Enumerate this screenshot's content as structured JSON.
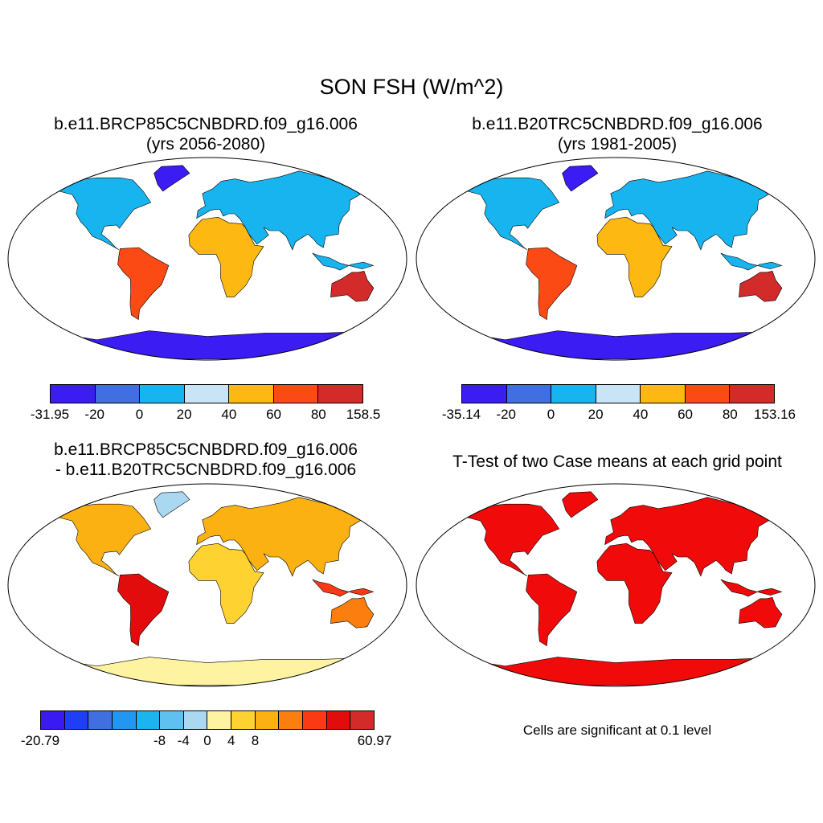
{
  "title": "SON FSH (W/m^2)",
  "panels": [
    {
      "title_line1": "b.e11.BRCP85C5CNBDRD.f09_g16.006",
      "title_line2": "(yrs 2056-2080)",
      "colorbar": {
        "colors": [
          "#3b1cf2",
          "#3f6fe0",
          "#18b4f0",
          "#c7e5f7",
          "#fdb811",
          "#fb4a14",
          "#d32a2a"
        ],
        "labels": [
          "-31.95",
          "-20",
          "0",
          "20",
          "40",
          "60",
          "80",
          "158.5"
        ]
      }
    },
    {
      "title_line1": "b.e11.B20TRC5CNBDRD.f09_g16.006",
      "title_line2": "(yrs 1981-2005)",
      "colorbar": {
        "colors": [
          "#3b1cf2",
          "#3f6fe0",
          "#18b4f0",
          "#c7e5f7",
          "#fdb811",
          "#fb4a14",
          "#d32a2a"
        ],
        "labels": [
          "-35.14",
          "-20",
          "0",
          "20",
          "40",
          "60",
          "80",
          "153.16"
        ]
      }
    },
    {
      "title_line1": "b.e11.BRCP85C5CNBDRD.f09_g16.006",
      "title_line2": "- b.e11.B20TRC5CNBDRD.f09_g16.006",
      "colorbar": {
        "colors": [
          "#3a1af2",
          "#1f3ff5",
          "#3f6fe0",
          "#2196f3",
          "#1ab4f0",
          "#5fc1ef",
          "#a9d8f0",
          "#fef3a0",
          "#fed230",
          "#fbb112",
          "#fb7e0f",
          "#fb3a14",
          "#e30c0c",
          "#d32a2a"
        ],
        "labels": [
          "-20.79",
          "-8",
          "-4",
          "0",
          "4",
          "8",
          "60.97"
        ]
      }
    },
    {
      "title_line1": "T-Test of two Case means at each grid point",
      "note": "Cells are significant at 0.1 level",
      "fill_color": "#f00a0a"
    }
  ]
}
